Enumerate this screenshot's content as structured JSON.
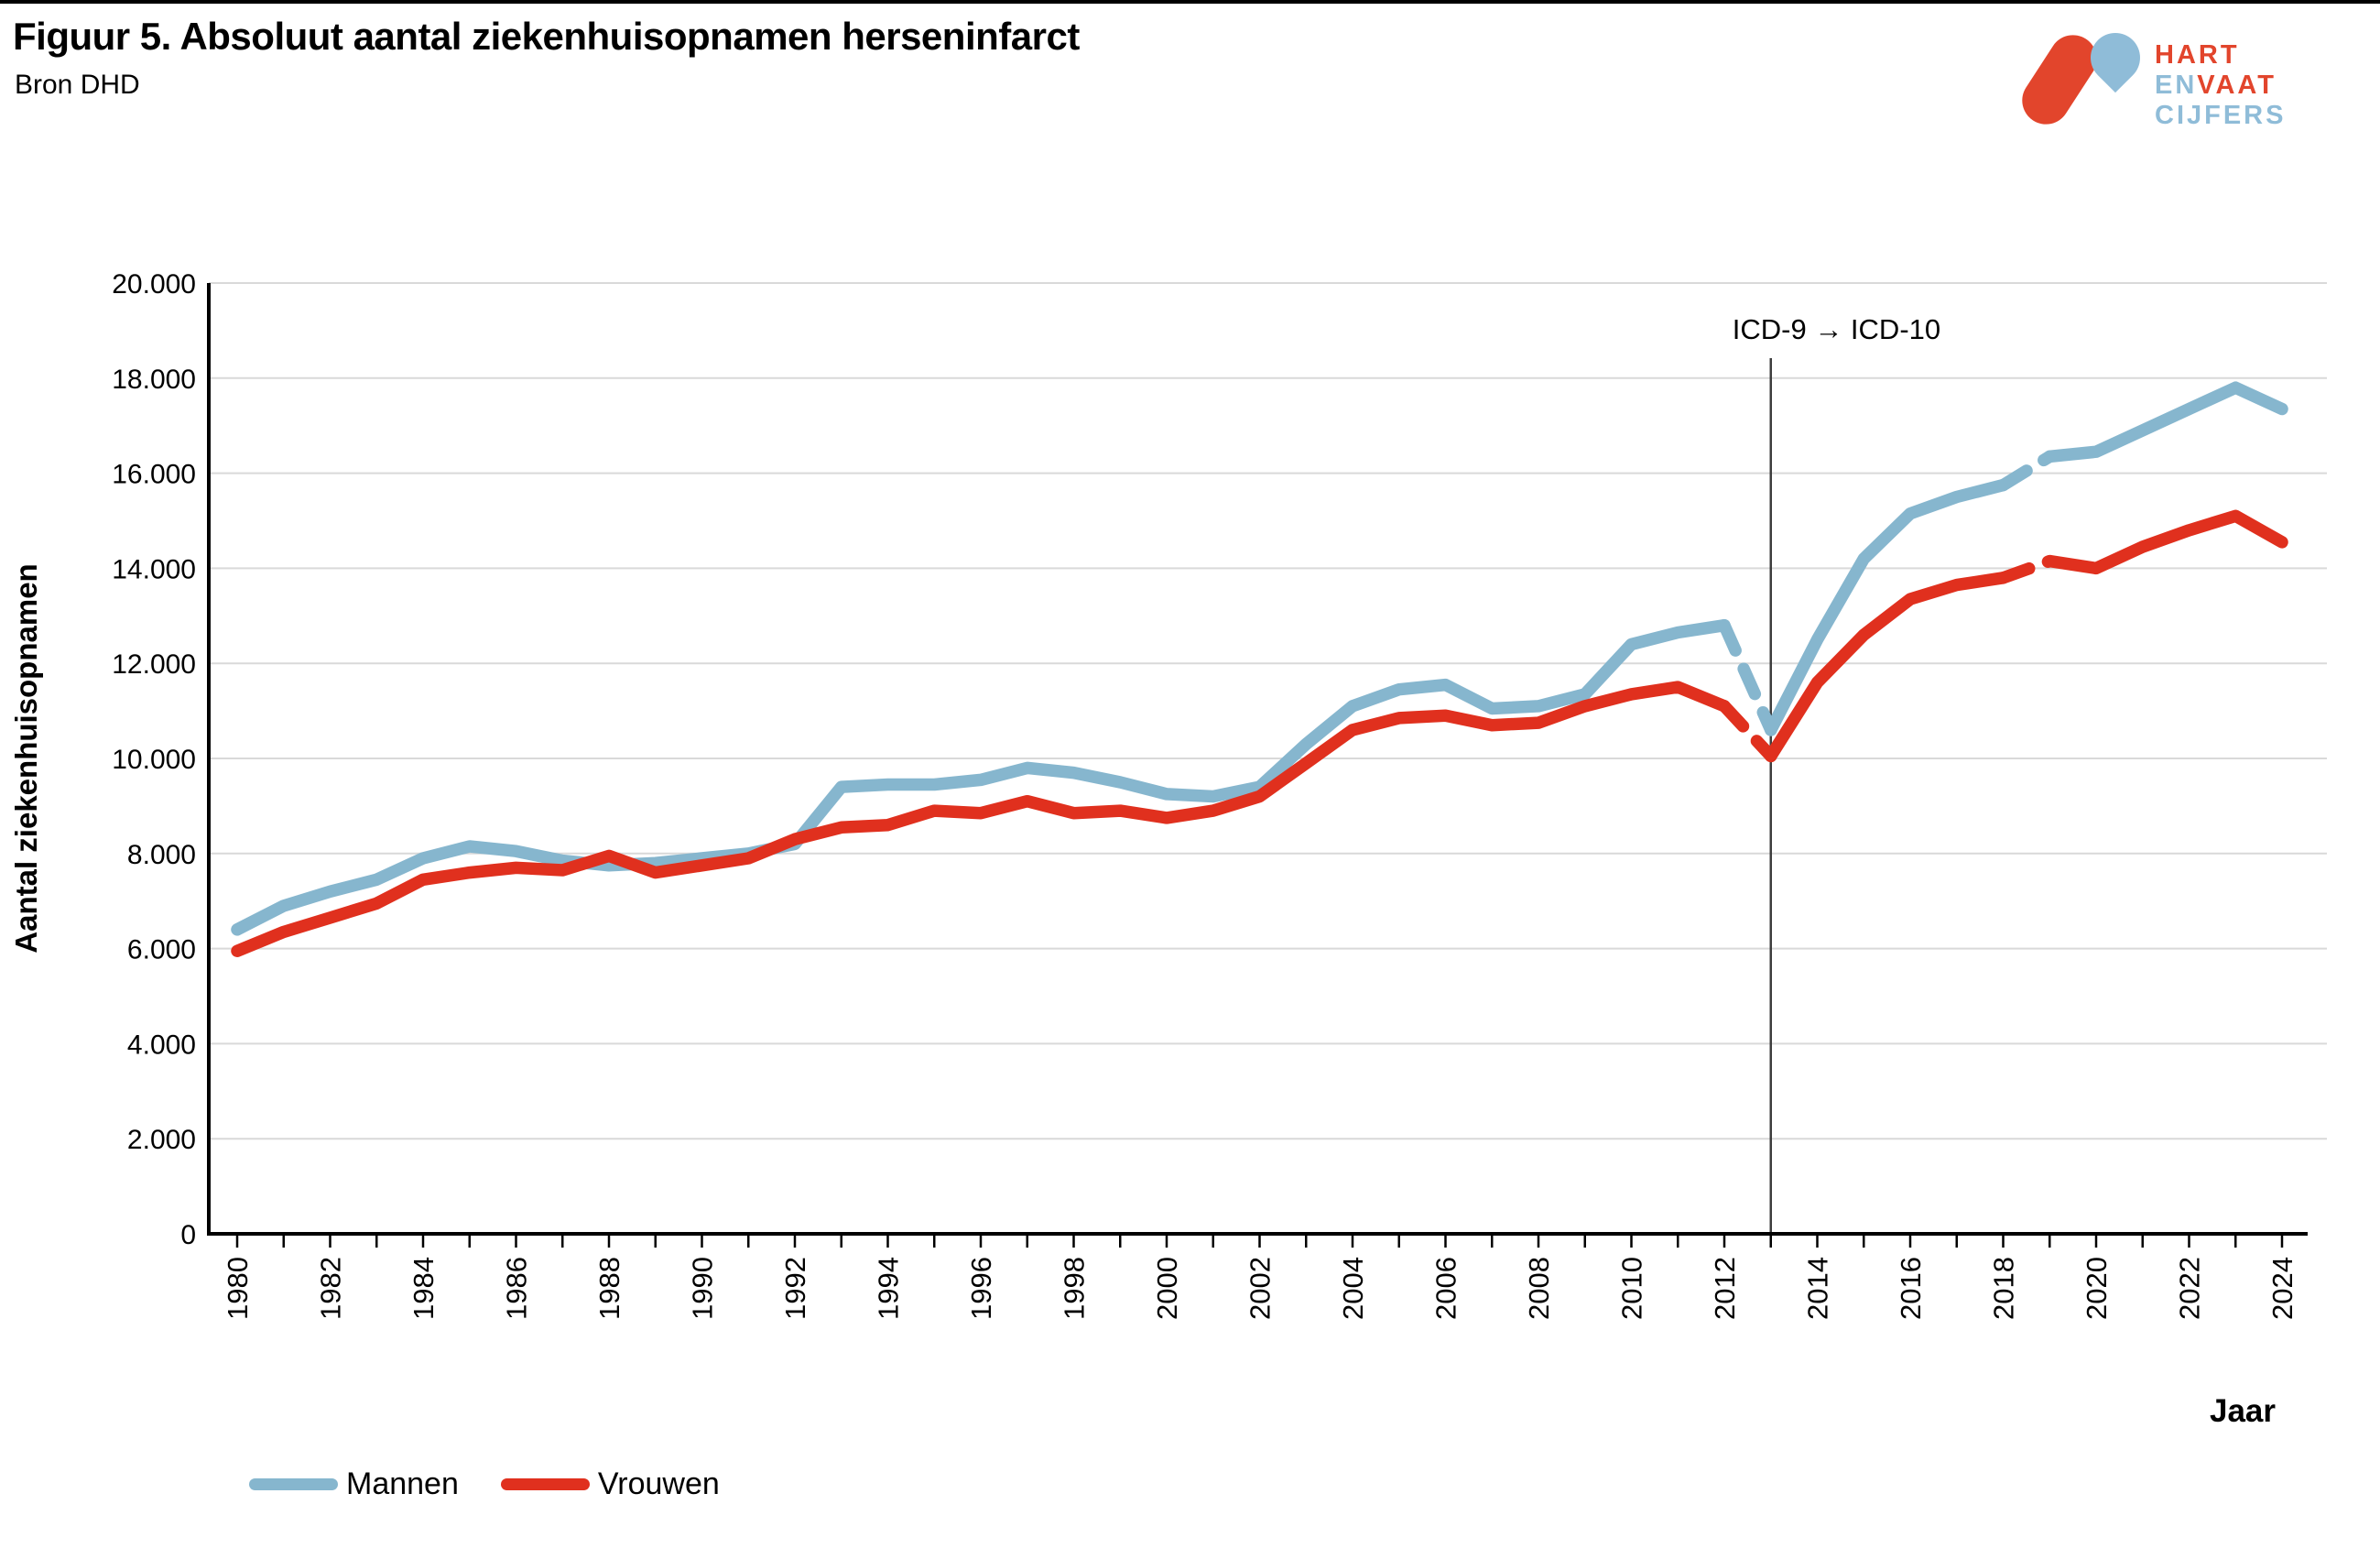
{
  "page": {
    "title": "Figuur 5. Absoluut aantal ziekenhuisopnamen herseninfarct",
    "source": "Bron DHD"
  },
  "logo": {
    "word1": "HART",
    "word2a": "EN",
    "word2b": "VAAT",
    "word3": "CIJFERS",
    "red": "#e2452c",
    "blue": "#8fbcd8"
  },
  "axis": {
    "x_title": "Jaar",
    "y_title": "Aantal ziekenhuisopnamen"
  },
  "annotation": {
    "text": "ICD-9 → ICD-10",
    "year": 2013
  },
  "legend": {
    "items": [
      {
        "label": "Mannen",
        "color": "#86b6ce"
      },
      {
        "label": "Vrouwen",
        "color": "#e0301e"
      }
    ]
  },
  "chart_data": {
    "type": "line",
    "title": "Figuur 5. Absoluut aantal ziekenhuisopnamen herseninfarct",
    "xlabel": "Jaar",
    "ylabel": "Aantal ziekenhuisopnamen",
    "ylim": [
      0,
      20000
    ],
    "ytick_step": 2000,
    "xtick_label_step": 2,
    "grid": "horizontal",
    "x": [
      1980,
      1981,
      1982,
      1983,
      1984,
      1985,
      1986,
      1987,
      1988,
      1989,
      1990,
      1991,
      1992,
      1993,
      1994,
      1995,
      1996,
      1997,
      1998,
      1999,
      2000,
      2001,
      2002,
      2003,
      2004,
      2005,
      2006,
      2007,
      2008,
      2009,
      2010,
      2011,
      2012,
      2013,
      2014,
      2015,
      2016,
      2017,
      2018,
      2019,
      2020,
      2021,
      2022,
      2023,
      2024
    ],
    "series": [
      {
        "name": "Mannen",
        "color": "#86b6ce",
        "values": [
          6400,
          6900,
          7200,
          7450,
          7900,
          8150,
          8050,
          7850,
          7750,
          7800,
          7900,
          8000,
          8200,
          9400,
          9450,
          9450,
          9550,
          9800,
          9700,
          9500,
          9250,
          9200,
          9400,
          10300,
          11100,
          11450,
          11550,
          11050,
          11100,
          11350,
          12400,
          12650,
          12800,
          10600,
          12500,
          14200,
          15150,
          15500,
          15750,
          16350,
          16450,
          16900,
          17350,
          17800,
          17350
        ]
      },
      {
        "name": "Vrouwen",
        "color": "#e0301e",
        "values": [
          5950,
          6350,
          6650,
          6950,
          7450,
          7600,
          7700,
          7650,
          7950,
          7600,
          7750,
          7900,
          8300,
          8550,
          8600,
          8900,
          8850,
          9100,
          8850,
          8900,
          8750,
          8900,
          9200,
          9900,
          10600,
          10850,
          10900,
          10700,
          10750,
          11100,
          11350,
          11500,
          11100,
          10050,
          11600,
          12600,
          13350,
          13650,
          13800,
          14150,
          14000,
          14450,
          14800,
          15100,
          14550
        ]
      }
    ],
    "dashed_segments": [
      [
        2012,
        2013
      ],
      [
        2018,
        2019
      ]
    ],
    "annotation_line_year": 2013,
    "annotation_label": "ICD-9 → ICD-10"
  }
}
